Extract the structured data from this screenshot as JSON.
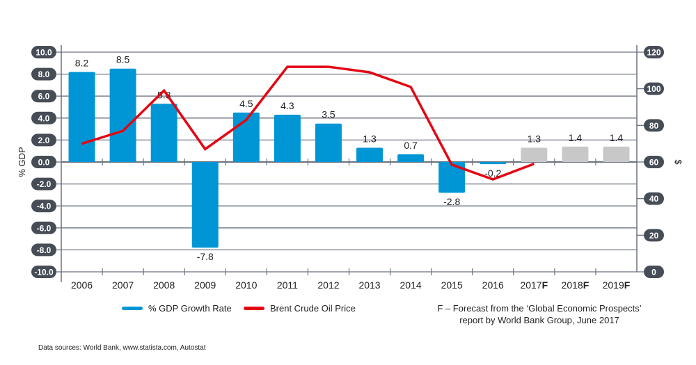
{
  "chart_data": {
    "type": "bar+line",
    "categories": [
      "2006",
      "2007",
      "2008",
      "2009",
      "2010",
      "2011",
      "2012",
      "2013",
      "2014",
      "2015",
      "2016",
      "2017F",
      "2018F",
      "2019F"
    ],
    "forecast_flags": [
      false,
      false,
      false,
      false,
      false,
      false,
      false,
      false,
      false,
      false,
      false,
      true,
      true,
      true
    ],
    "series": [
      {
        "name": "% GDP Growth Rate",
        "type": "bar",
        "axis": "left",
        "color": "#0096d6",
        "forecast_color": "#c8c8c8",
        "values": [
          8.2,
          8.5,
          5.3,
          -7.8,
          4.5,
          4.3,
          3.5,
          1.3,
          0.7,
          -2.8,
          -0.2,
          1.3,
          1.4,
          1.4
        ],
        "labels": [
          "8.2",
          "8.5",
          "5.3",
          "-7.8",
          "4.5",
          "4.3",
          "3.5",
          "1.3",
          "0.7",
          "-2.8",
          "-0.2",
          "1.3",
          "1.4",
          "1.4"
        ]
      },
      {
        "name": "Brent Crude Oil Price",
        "type": "line",
        "axis": "right",
        "color": "#e30613",
        "values": [
          70,
          77,
          99,
          67,
          83,
          112,
          112,
          109,
          101,
          58.5,
          50.5,
          59,
          null,
          null
        ]
      }
    ],
    "ylabel": "% GDP",
    "y2label": "$",
    "ylim": [
      -10,
      10
    ],
    "y2lim": [
      0,
      120
    ],
    "yticks": [
      "10.0",
      "8.0",
      "6.0",
      "4.0",
      "2.0",
      "0.0",
      "-2.0",
      "-4.0",
      "-6.0",
      "-8.0",
      "-10.0"
    ],
    "y2ticks": [
      "120",
      "100",
      "80",
      "60",
      "40",
      "20",
      "0"
    ],
    "grid": true,
    "legend": "bottom-left"
  },
  "note": {
    "line1": "F – Forecast from the ‘Global Economic Prospects’",
    "line2": "report by World Bank Group, June 2017"
  },
  "source": "Data sources: World Bank, www.statista.com, Autostat"
}
